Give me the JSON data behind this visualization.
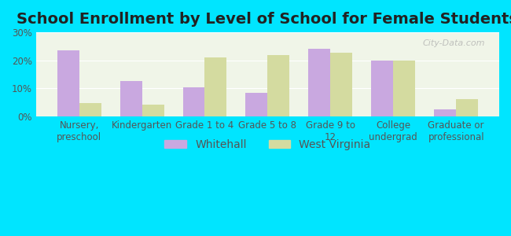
{
  "title": "School Enrollment by Level of School for Female Students",
  "categories": [
    "Nursery,\npreschool",
    "Kindergarten",
    "Grade 1 to 4",
    "Grade 5 to 8",
    "Grade 9 to\n12",
    "College\nundergrad",
    "Graduate or\nprofessional"
  ],
  "whitehall": [
    23.5,
    12.5,
    10.3,
    8.5,
    24.0,
    20.0,
    2.5
  ],
  "west_virginia": [
    4.8,
    4.3,
    21.0,
    21.8,
    22.8,
    19.8,
    6.2
  ],
  "whitehall_color": "#c9a8e0",
  "west_virginia_color": "#d4dba0",
  "background_outer": "#00e5ff",
  "background_inner": "#f0f5e8",
  "ylim": [
    0,
    30
  ],
  "yticks": [
    0,
    10,
    20,
    30
  ],
  "ytick_labels": [
    "0%",
    "10%",
    "20%",
    "30%"
  ],
  "bar_width": 0.35,
  "title_fontsize": 14,
  "legend_fontsize": 10,
  "tick_fontsize": 8.5,
  "watermark": "City-Data.com"
}
